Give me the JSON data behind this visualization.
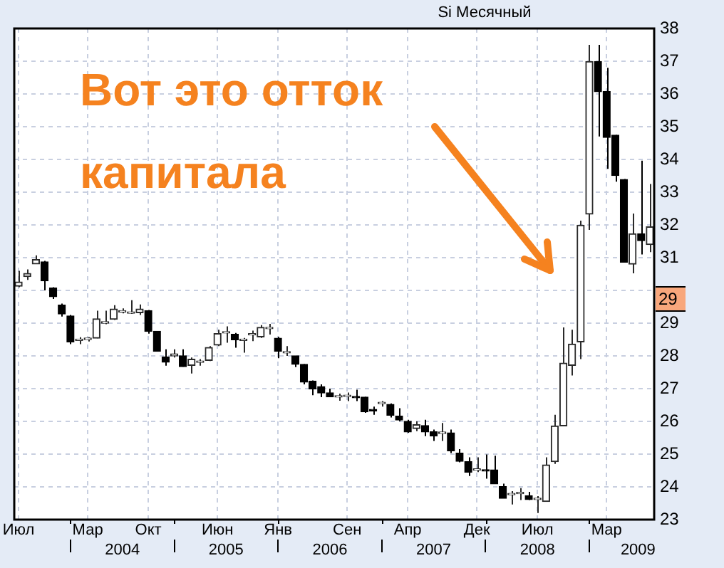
{
  "chart_data": {
    "type": "candlestick",
    "title": "Si Месячный",
    "colors": [
      "#2a2a2a",
      "#2a2a2a",
      "#2a2a2a",
      "#000000",
      "#000000",
      "#000000",
      "#000000",
      "#2a2a2a",
      "#2a2a2a",
      "#2a2a2a",
      "#2a2a2a",
      "#2a2a2a",
      "#2a2a2a",
      "#2a2a2a",
      "#2a2a2a",
      "#000000",
      "#000000",
      "#000000",
      "#2a2a2a",
      "#000000",
      "#2a2a2a",
      "#2a2a2a",
      "#2a2a2a",
      "#2a2a2a",
      "#2a2a2a",
      "#000000",
      "#2a2a2a",
      "#2a2a2a",
      "#2a2a2a",
      "#2a2a2a",
      "#000000",
      "#2a2a2a",
      "#000000",
      "#000000",
      "#000000",
      "#000000",
      "#000000",
      "#2a2a2a",
      "#2a2a2a",
      "#000000",
      "#000000",
      "#000000",
      "#2a2a2a",
      "#000000",
      "#000000",
      "#000000",
      "#2a2a2a",
      "#000000",
      "#000000",
      "#2a2a2a",
      "#000000",
      "#000000",
      "#000000",
      "#2a2a2a",
      "#000000",
      "#000000",
      "#000000",
      "#2a2a2a",
      "#2a2a2a",
      "#000000",
      "#2a2a2a",
      "#2a2a2a",
      "#2a2a2a",
      "#2a2a2a",
      "#2a2a2a",
      "#2a2a2a",
      "#2a2a2a",
      "#000000",
      "#000000",
      "#000000",
      "#000000",
      "#2a2a2a",
      "#000000",
      "#2a2a2a"
    ],
    "categories": [
      "Июл",
      null,
      null,
      null,
      null,
      null,
      null,
      null,
      "Мар",
      null,
      null,
      null,
      null,
      null,
      null,
      "Окт",
      null,
      null,
      null,
      null,
      null,
      null,
      null,
      "Июн",
      null,
      null,
      null,
      null,
      null,
      null,
      "Янв",
      null,
      null,
      null,
      null,
      null,
      null,
      null,
      "Сен",
      null,
      null,
      null,
      null,
      null,
      null,
      "Апр",
      null,
      null,
      null,
      null,
      null,
      null,
      null,
      "Дек",
      null,
      null,
      null,
      null,
      null,
      null,
      "Июл",
      null,
      null,
      null,
      null,
      null,
      null,
      null,
      "Мар",
      null,
      null,
      null,
      null,
      null
    ],
    "ohlc": [
      [
        30.13,
        30.6,
        30.1,
        30.26
      ],
      [
        30.42,
        30.64,
        30.32,
        30.52
      ],
      [
        30.81,
        31.07,
        30.81,
        30.94
      ],
      [
        30.87,
        30.9,
        30.0,
        30.29
      ],
      [
        30.07,
        30.1,
        29.74,
        29.81
      ],
      [
        29.55,
        29.6,
        29.2,
        29.28
      ],
      [
        29.22,
        29.25,
        28.36,
        28.43
      ],
      [
        28.47,
        28.57,
        28.36,
        28.49
      ],
      [
        28.5,
        28.57,
        28.44,
        28.52
      ],
      [
        28.54,
        29.38,
        28.54,
        29.13
      ],
      [
        29.0,
        29.38,
        28.97,
        29.02
      ],
      [
        29.12,
        29.55,
        29.1,
        29.43
      ],
      [
        29.34,
        29.45,
        29.3,
        29.36
      ],
      [
        29.3,
        29.7,
        29.28,
        29.31
      ],
      [
        29.32,
        29.57,
        29.25,
        29.43
      ],
      [
        29.38,
        29.4,
        28.68,
        28.75
      ],
      [
        28.75,
        28.75,
        28.14,
        28.14
      ],
      [
        27.97,
        28.2,
        27.7,
        27.81
      ],
      [
        28.0,
        28.2,
        27.95,
        28.06
      ],
      [
        28.0,
        28.2,
        27.67,
        27.67
      ],
      [
        27.71,
        27.95,
        27.46,
        27.9
      ],
      [
        27.8,
        27.9,
        27.7,
        27.82
      ],
      [
        27.86,
        28.3,
        27.84,
        28.26
      ],
      [
        28.33,
        28.8,
        28.3,
        28.68
      ],
      [
        28.7,
        28.9,
        28.4,
        28.72
      ],
      [
        28.66,
        28.7,
        28.25,
        28.49
      ],
      [
        28.47,
        28.55,
        28.1,
        28.49
      ],
      [
        28.64,
        28.77,
        28.45,
        28.66
      ],
      [
        28.58,
        28.94,
        28.55,
        28.87
      ],
      [
        28.83,
        28.98,
        28.65,
        28.85
      ],
      [
        28.54,
        28.58,
        27.93,
        28.14
      ],
      [
        28.09,
        28.3,
        28.0,
        28.11
      ],
      [
        28.0,
        28.0,
        27.66,
        27.74
      ],
      [
        27.74,
        27.75,
        27.13,
        27.2
      ],
      [
        27.23,
        27.25,
        26.8,
        26.99
      ],
      [
        27.06,
        27.13,
        26.74,
        26.87
      ],
      [
        26.87,
        27.0,
        26.75,
        26.75
      ],
      [
        26.74,
        26.85,
        26.63,
        26.75
      ],
      [
        26.76,
        26.88,
        26.62,
        26.78
      ],
      [
        26.74,
        26.97,
        26.62,
        26.72
      ],
      [
        26.74,
        26.75,
        26.26,
        26.29
      ],
      [
        26.34,
        26.45,
        26.2,
        26.32
      ],
      [
        26.54,
        26.62,
        26.45,
        26.56
      ],
      [
        26.52,
        26.55,
        26.12,
        26.19
      ],
      [
        26.16,
        26.4,
        26.0,
        26.04
      ],
      [
        26.0,
        26.05,
        25.65,
        25.68
      ],
      [
        25.78,
        26.0,
        25.7,
        25.9
      ],
      [
        25.87,
        26.05,
        25.55,
        25.68
      ],
      [
        25.68,
        25.75,
        25.4,
        25.55
      ],
      [
        25.63,
        25.95,
        25.4,
        25.65
      ],
      [
        25.65,
        25.75,
        25.03,
        25.1
      ],
      [
        25.03,
        25.15,
        24.75,
        24.78
      ],
      [
        24.77,
        24.9,
        24.33,
        24.45
      ],
      [
        24.51,
        24.9,
        24.45,
        24.53
      ],
      [
        24.5,
        24.99,
        24.25,
        24.48
      ],
      [
        24.52,
        24.95,
        24.09,
        24.09
      ],
      [
        24.01,
        24.1,
        23.65,
        23.65
      ],
      [
        23.76,
        23.87,
        23.46,
        23.78
      ],
      [
        23.79,
        23.96,
        23.6,
        23.81
      ],
      [
        23.73,
        23.85,
        23.6,
        23.61
      ],
      [
        23.61,
        23.72,
        23.2,
        23.63
      ],
      [
        23.55,
        24.9,
        23.55,
        24.67
      ],
      [
        24.77,
        26.2,
        24.7,
        25.86
      ],
      [
        25.86,
        28.87,
        25.86,
        27.78
      ],
      [
        27.71,
        28.8,
        27.4,
        28.36
      ],
      [
        28.43,
        32.13,
        27.9,
        31.99
      ],
      [
        32.33,
        37.5,
        31.85,
        36.99
      ],
      [
        36.99,
        37.5,
        34.7,
        36.07
      ],
      [
        36.07,
        36.8,
        33.71,
        34.67
      ],
      [
        34.74,
        34.75,
        33.32,
        33.51
      ],
      [
        33.39,
        33.4,
        30.86,
        30.86
      ],
      [
        30.8,
        32.35,
        30.52,
        31.73
      ],
      [
        31.73,
        33.96,
        31.1,
        31.52
      ],
      [
        31.4,
        33.25,
        31.17,
        31.94
      ]
    ],
    "x2lim": [
      "2003-06-16",
      "2009-08-16"
    ],
    "x2ticks": [
      {
        "value": "2004-01",
        "label": null
      },
      {
        "value": "2004-07",
        "label": "2004"
      },
      {
        "value": "2005-01",
        "label": null
      },
      {
        "value": "2005-07",
        "label": "2005"
      },
      {
        "value": "2006-01",
        "label": null
      },
      {
        "value": "2006-07",
        "label": "2006"
      },
      {
        "value": "2007-01",
        "label": null
      },
      {
        "value": "2007-07",
        "label": "2007"
      },
      {
        "value": "2008-01",
        "label": null
      },
      {
        "value": "2008-07",
        "label": "2008"
      },
      {
        "value": "2009-01",
        "label": null
      },
      {
        "value": "2009-06-20",
        "label": "2009"
      }
    ],
    "ylim": [
      23,
      38
    ],
    "yticks": [
      23,
      24,
      25,
      26,
      27,
      28,
      29,
      {
        "value": 30,
        "label": null
      },
      31,
      32,
      33,
      34,
      35,
      36,
      37,
      38
    ],
    "grid": true,
    "annotations": [
      "Вот это отток капитала",
      "29"
    ]
  }
}
